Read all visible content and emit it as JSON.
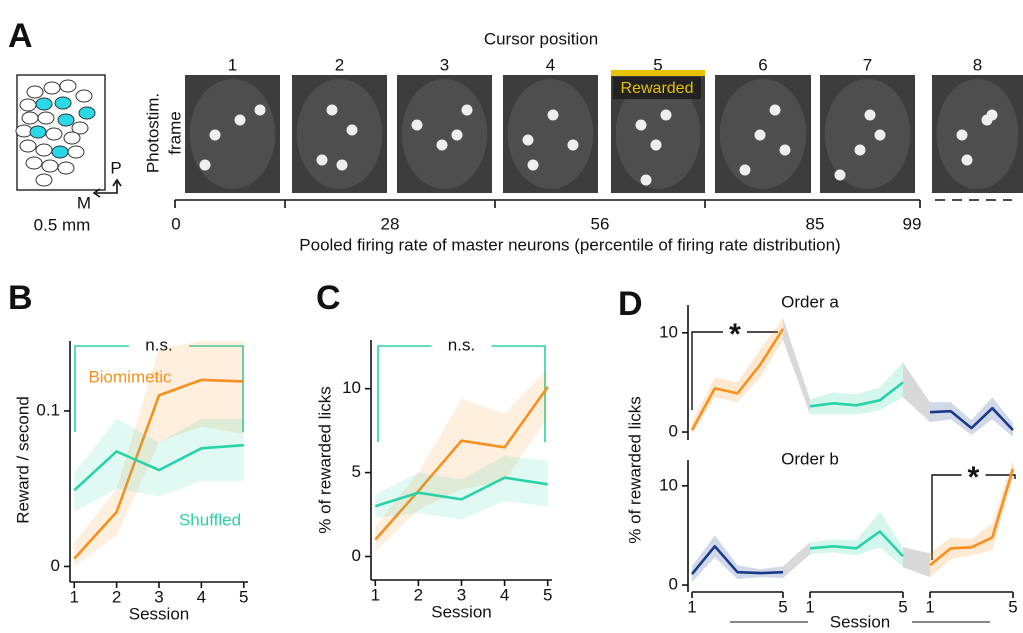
{
  "panel_a": {
    "label": "A",
    "title": "Cursor position",
    "positions": [
      1,
      2,
      3,
      4,
      5,
      6,
      7,
      8
    ],
    "highlight": "Rewarded",
    "frame_label": [
      "Photostim.",
      "frame"
    ],
    "scale": {
      "p": "P",
      "m": "M",
      "bar": "0.5 mm"
    },
    "axis_ticks": [
      0,
      28,
      56,
      85,
      99
    ],
    "axis_label": "Pooled firing rate of master neurons (percentile of firing rate distribution)"
  },
  "chart_data": [
    {
      "type": "line",
      "panel": "B",
      "ylabel": "Reward / second",
      "xlabel": "Session",
      "annotation": "n.s.",
      "x": [
        1,
        2,
        3,
        4,
        5
      ],
      "xlim": [
        0.9,
        5.1
      ],
      "xticks": [
        1,
        2,
        3,
        4,
        5
      ],
      "ylim": [
        -0.01,
        0.145
      ],
      "yticks": [
        0,
        0.1
      ],
      "series": [
        {
          "name": "Biomimetic",
          "color": "#f7901e",
          "values": [
            0.005,
            0.035,
            0.11,
            0.12,
            0.119
          ],
          "lower": [
            0.0,
            0.02,
            0.08,
            0.09,
            0.085
          ],
          "upper": [
            0.015,
            0.05,
            0.14,
            0.145,
            0.145
          ]
        },
        {
          "name": "Shuffled",
          "color": "#28d3a7",
          "values": [
            0.049,
            0.074,
            0.062,
            0.076,
            0.078
          ],
          "lower": [
            0.035,
            0.05,
            0.045,
            0.055,
            0.055
          ],
          "upper": [
            0.06,
            0.095,
            0.08,
            0.095,
            0.095
          ]
        }
      ]
    },
    {
      "type": "line",
      "panel": "C",
      "ylabel": "% of rewarded licks",
      "xlabel": "Session",
      "annotation": "n.s.",
      "x": [
        1,
        2,
        3,
        4,
        5
      ],
      "xlim": [
        0.9,
        5.1
      ],
      "xticks": [
        1,
        2,
        3,
        4,
        5
      ],
      "ylim": [
        -1.4,
        12.9
      ],
      "yticks": [
        0,
        5,
        10
      ],
      "series": [
        {
          "color": "#f7901e",
          "values": [
            1.0,
            3.9,
            6.9,
            6.5,
            10.1
          ],
          "lower": [
            0.3,
            2.8,
            4.0,
            4.5,
            8.3
          ],
          "upper": [
            1.8,
            5.0,
            9.4,
            8.5,
            11.2
          ]
        },
        {
          "color": "#28d3a7",
          "values": [
            3.0,
            3.8,
            3.4,
            4.7,
            4.3
          ],
          "lower": [
            2.3,
            2.6,
            2.2,
            3.3,
            3.0
          ],
          "upper": [
            3.7,
            5.0,
            4.6,
            6.0,
            5.7
          ]
        }
      ]
    },
    {
      "type": "segmented",
      "panel": "D",
      "ylabel": "% of rewarded licks",
      "xlabel": "Session",
      "subplots": [
        {
          "title": "Order a",
          "annotation": "*",
          "ylim": [
            -0.8,
            12.8
          ],
          "yticks": [
            0,
            10
          ],
          "segments": [
            {
              "x": [
                1,
                2,
                3,
                4,
                5
              ],
              "series": [
                {
                  "color": "#f7901e",
                  "values": [
                    0.2,
                    4.4,
                    3.9,
                    6.8,
                    10.4
                  ],
                  "lower": [
                    -0.3,
                    3.5,
                    3.0,
                    5.5,
                    9.3
                  ],
                  "upper": [
                    1.0,
                    5.5,
                    5.0,
                    8.3,
                    11.5
                  ]
                }
              ]
            },
            {
              "x": [
                1,
                2,
                3,
                4,
                5
              ],
              "series": [
                {
                  "color": "#28d3a7",
                  "values": [
                    2.6,
                    2.9,
                    2.7,
                    3.2,
                    5.0
                  ],
                  "lower": [
                    1.8,
                    1.8,
                    1.8,
                    2.2,
                    3.5
                  ],
                  "upper": [
                    3.3,
                    4.0,
                    3.8,
                    4.5,
                    7.0
                  ]
                }
              ]
            },
            {
              "x": [
                1,
                2,
                3,
                4,
                5
              ],
              "series": [
                {
                  "color": "#1b3a8c",
                  "values": [
                    2.0,
                    2.1,
                    0.4,
                    2.4,
                    0.2
                  ],
                  "lower": [
                    1.0,
                    1.3,
                    -0.3,
                    1.3,
                    -0.5
                  ],
                  "upper": [
                    3.0,
                    3.0,
                    1.2,
                    3.5,
                    0.9
                  ]
                }
              ]
            }
          ]
        },
        {
          "title": "Order b",
          "annotation": "*",
          "ylim": [
            -0.7,
            12.6
          ],
          "yticks": [
            0,
            10
          ],
          "segments": [
            {
              "x": [
                1,
                2,
                3,
                4,
                5
              ],
              "xticks": [
                1,
                5
              ],
              "series": [
                {
                  "color": "#1b3a8c",
                  "values": [
                    1.1,
                    3.9,
                    1.3,
                    1.2,
                    1.3
                  ],
                  "lower": [
                    0.3,
                    2.8,
                    0.6,
                    0.8,
                    0.7
                  ],
                  "upper": [
                    1.9,
                    5.0,
                    2.0,
                    1.6,
                    1.9
                  ]
                }
              ]
            },
            {
              "x": [
                1,
                2,
                3,
                4,
                5
              ],
              "xticks": [
                1,
                5
              ],
              "series": [
                {
                  "color": "#28d3a7",
                  "values": [
                    3.7,
                    3.9,
                    3.7,
                    5.4,
                    2.9
                  ],
                  "lower": [
                    3.1,
                    3.3,
                    3.0,
                    3.8,
                    1.8
                  ],
                  "upper": [
                    4.3,
                    4.6,
                    4.5,
                    7.4,
                    3.8
                  ]
                }
              ]
            },
            {
              "x": [
                1,
                2,
                3,
                4,
                5
              ],
              "xticks": [
                1,
                5
              ],
              "series": [
                {
                  "color": "#f7901e",
                  "values": [
                    2.0,
                    3.7,
                    3.8,
                    4.8,
                    11.7
                  ],
                  "lower": [
                    0.8,
                    2.6,
                    3.0,
                    3.5,
                    10.7
                  ],
                  "upper": [
                    3.2,
                    4.8,
                    4.6,
                    6.2,
                    12.6
                  ]
                }
              ]
            }
          ]
        }
      ]
    }
  ]
}
